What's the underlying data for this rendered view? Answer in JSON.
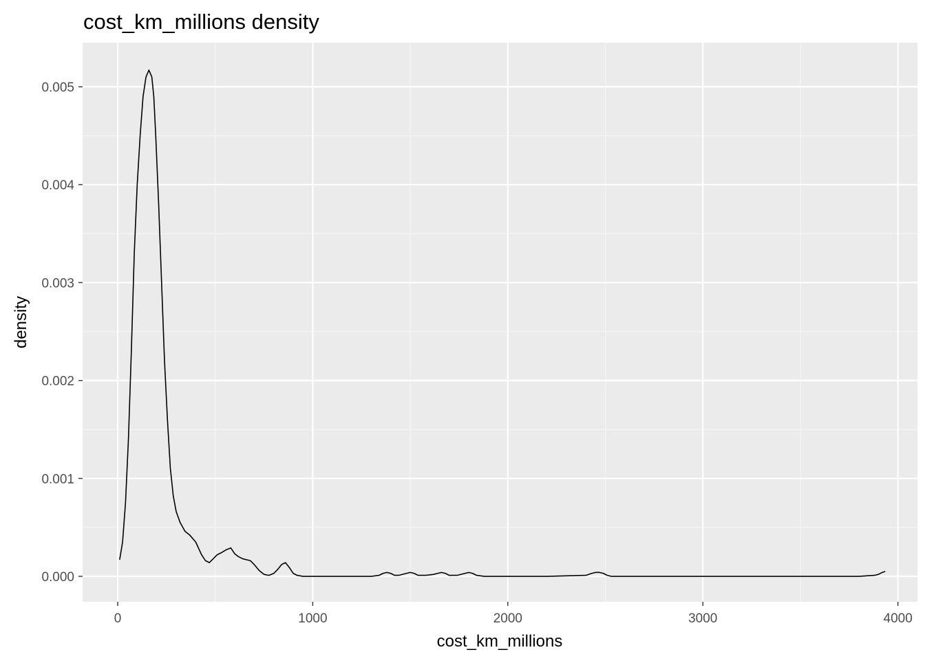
{
  "chart_data": {
    "type": "area",
    "title": "cost_km_millions density",
    "xlabel": "cost_km_millions",
    "ylabel": "density",
    "xlim": [
      -180,
      4100
    ],
    "ylim": [
      -0.00026,
      0.00545
    ],
    "x_ticks": [
      0,
      1000,
      2000,
      3000,
      4000
    ],
    "x_tick_labels": [
      "0",
      "1000",
      "2000",
      "3000",
      "4000"
    ],
    "y_ticks": [
      0,
      0.001,
      0.002,
      0.003,
      0.004,
      0.005
    ],
    "y_tick_labels": [
      "0.000",
      "0.001",
      "0.002",
      "0.003",
      "0.004",
      "0.005"
    ],
    "x_minor_ticks": [
      500,
      1500,
      2500,
      3500
    ],
    "y_minor_ticks": [
      0.0005,
      0.0015,
      0.0025,
      0.0035,
      0.0045
    ],
    "grid": true,
    "legend": "none",
    "colors": {
      "panel_background": "#ebebeb",
      "grid_major": "#ffffff",
      "grid_minor": "#f5f5f5",
      "line": "#000000",
      "tick_label": "#4d4d4d",
      "tick_mark": "#333333"
    },
    "series": [
      {
        "x": [
          10,
          25,
          40,
          55,
          70,
          85,
          100,
          115,
          130,
          145,
          160,
          175,
          185,
          195,
          210,
          225,
          240,
          255,
          270,
          285,
          300,
          320,
          345,
          370,
          400,
          430,
          450,
          470,
          490,
          510,
          530,
          555,
          580,
          600,
          620,
          640,
          660,
          680,
          700,
          725,
          750,
          775,
          800,
          820,
          840,
          860,
          880,
          900,
          920,
          950,
          1000,
          1100,
          1200,
          1300,
          1340,
          1360,
          1380,
          1400,
          1420,
          1440,
          1480,
          1500,
          1520,
          1540,
          1580,
          1620,
          1640,
          1660,
          1680,
          1700,
          1740,
          1780,
          1800,
          1820,
          1840,
          1880,
          2000,
          2200,
          2400,
          2430,
          2450,
          2470,
          2490,
          2510,
          2530,
          2600,
          2800,
          3000,
          3200,
          3400,
          3600,
          3800,
          3880,
          3900,
          3920,
          3935
        ],
        "y": [
          0.00017,
          0.00035,
          0.00075,
          0.0014,
          0.0023,
          0.0033,
          0.004,
          0.0045,
          0.0049,
          0.0051,
          0.00517,
          0.0051,
          0.0049,
          0.0045,
          0.0038,
          0.003,
          0.0022,
          0.0016,
          0.0011,
          0.00082,
          0.00066,
          0.00055,
          0.00046,
          0.00042,
          0.00035,
          0.00022,
          0.00016,
          0.00014,
          0.00018,
          0.00022,
          0.00024,
          0.00027,
          0.00029,
          0.00023,
          0.0002,
          0.00018,
          0.00017,
          0.00016,
          0.00012,
          6e-05,
          2e-05,
          1e-05,
          3e-05,
          7e-05,
          0.00012,
          0.00014,
          9e-05,
          3e-05,
          1e-05,
          0.0,
          0.0,
          0.0,
          0.0,
          0.0,
          1e-05,
          3e-05,
          4e-05,
          3e-05,
          1e-05,
          1e-05,
          3e-05,
          4e-05,
          3e-05,
          1e-05,
          1e-05,
          2e-05,
          3e-05,
          4e-05,
          3e-05,
          1e-05,
          1e-05,
          3e-05,
          4e-05,
          3e-05,
          1e-05,
          0.0,
          0.0,
          0.0,
          1e-05,
          3e-05,
          4e-05,
          4e-05,
          3e-05,
          1e-05,
          0.0,
          0.0,
          0.0,
          0.0,
          0.0,
          0.0,
          0.0,
          0.0,
          1e-05,
          2e-05,
          4e-05,
          5e-05
        ]
      }
    ]
  }
}
